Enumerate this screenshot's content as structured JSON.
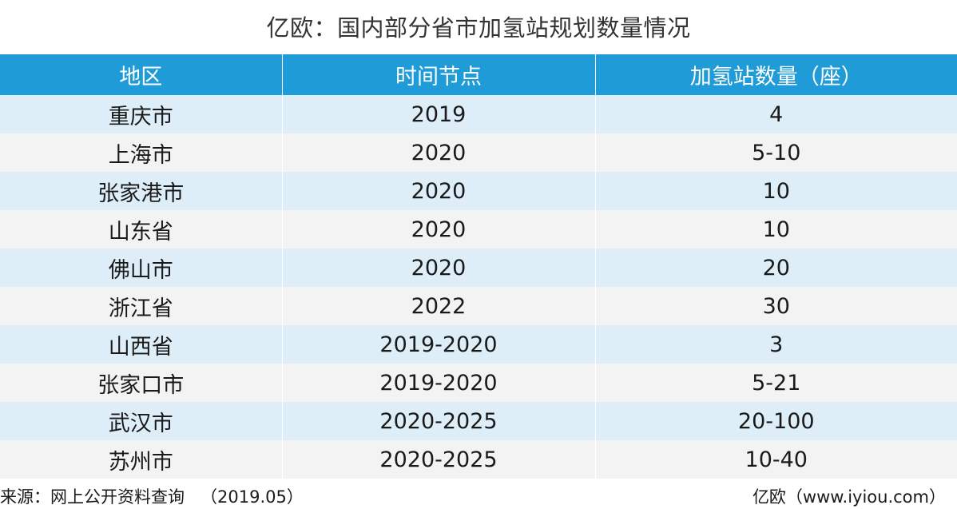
{
  "title": "亿欧：国内部分省市加氢站规划数量情况",
  "table": {
    "headers": [
      "地区",
      "时间节点",
      "加氢站数量（座）"
    ],
    "rows": [
      [
        "重庆市",
        "2019",
        "4"
      ],
      [
        "上海市",
        "2020",
        "5-10"
      ],
      [
        "张家港市",
        "2020",
        "10"
      ],
      [
        "山东省",
        "2020",
        "10"
      ],
      [
        "佛山市",
        "2020",
        "20"
      ],
      [
        "浙江省",
        "2022",
        "30"
      ],
      [
        "山西省",
        "2019-2020",
        "3"
      ],
      [
        "张家口市",
        "2019-2020",
        "5-21"
      ],
      [
        "武汉市",
        "2020-2025",
        "20-100"
      ],
      [
        "苏州市",
        "2020-2025",
        "10-40"
      ]
    ]
  },
  "footer": {
    "source": "来源：网上公开资料查询   （2019.05）",
    "brand": "亿欧（www.iyiou.com）"
  },
  "colors": {
    "header_bg": "#1f9bd7",
    "row_odd": "#deeef8",
    "row_even": "#f3f3f3"
  }
}
